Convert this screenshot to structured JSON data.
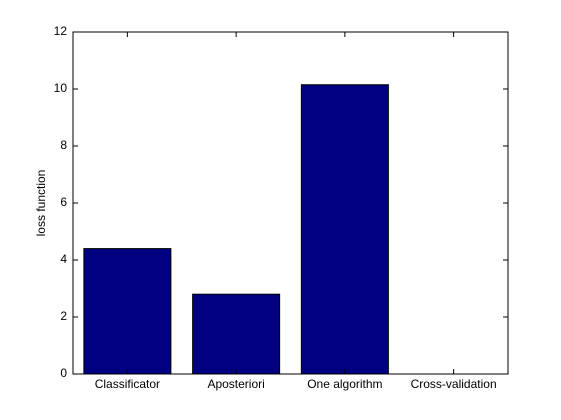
{
  "chart_data": {
    "type": "bar",
    "y_label": "loss function",
    "categories": [
      "Classificator",
      "Aposteriori",
      "One algorithm",
      "Cross-validation"
    ],
    "values": [
      4.4,
      2.8,
      10.15,
      0
    ],
    "color": "#000080",
    "ylim": [
      0,
      12
    ],
    "yticks": [
      0,
      2,
      4,
      6,
      8,
      10,
      12
    ],
    "grid": false
  }
}
